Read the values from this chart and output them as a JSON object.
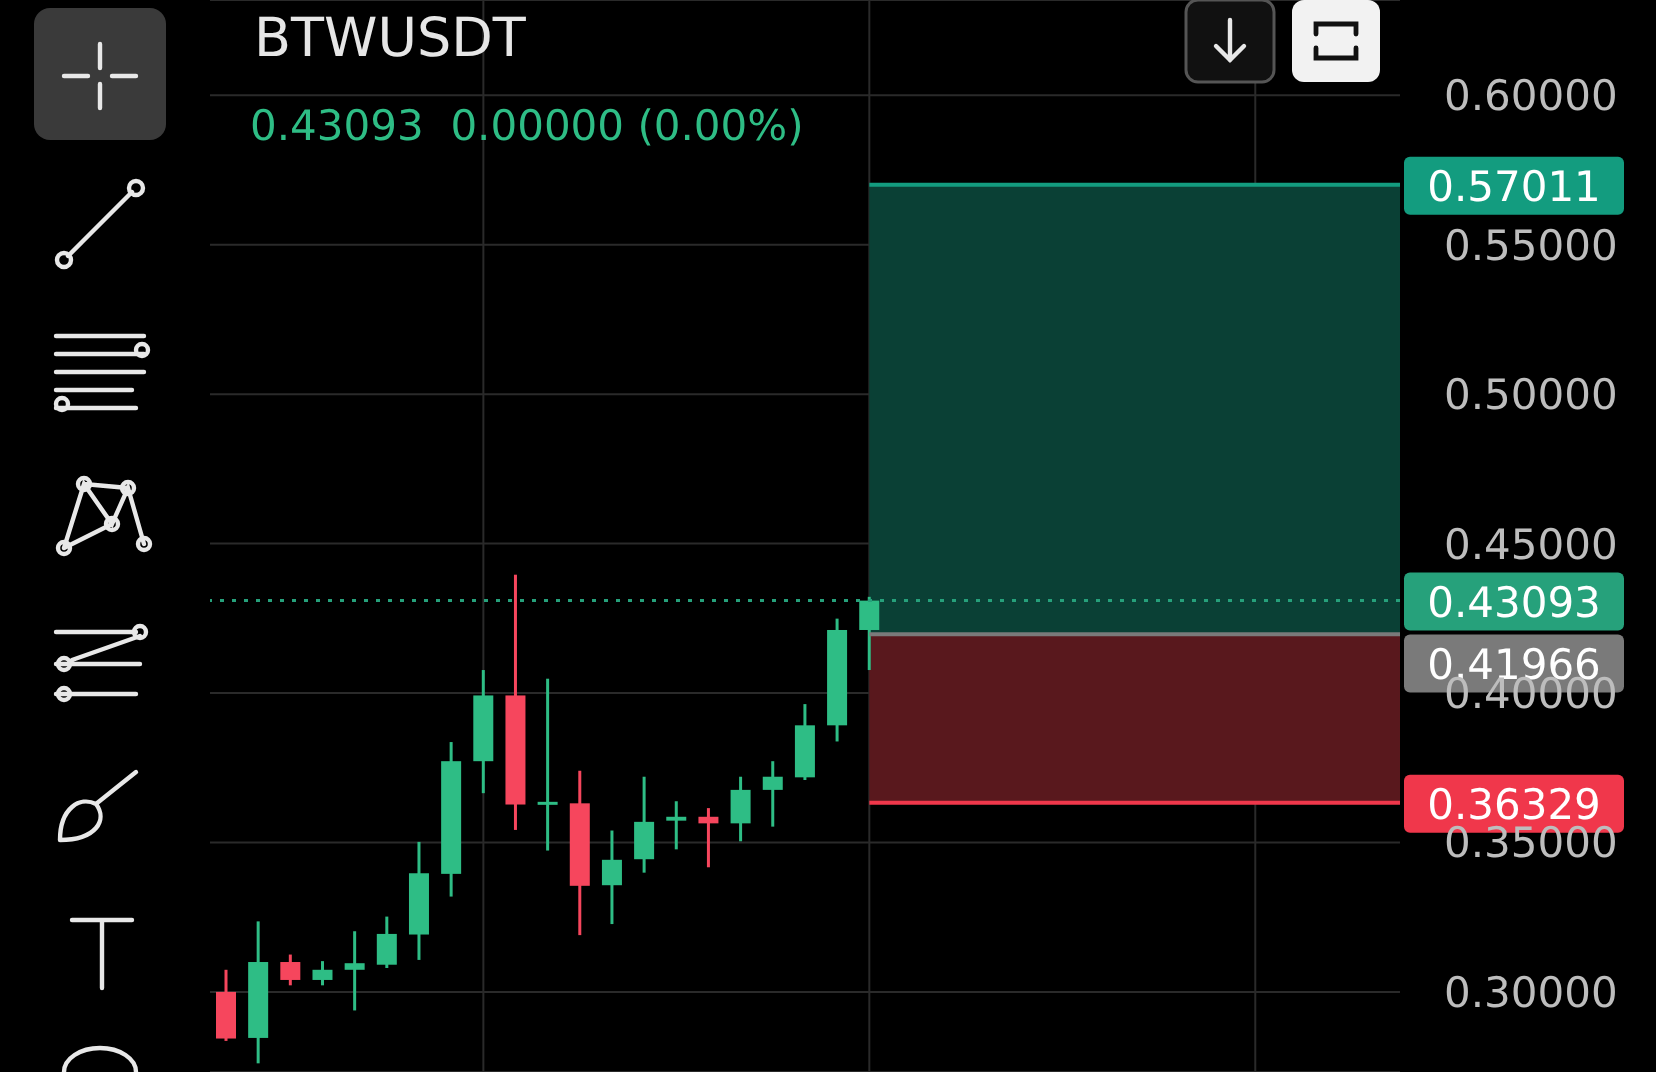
{
  "chart_data": {
    "type": "candlestick",
    "title": "BTWUSDT",
    "subtitle": "0.43093  0.00000 (0.00%)",
    "categories": [
      null,
      null,
      null,
      null,
      null,
      null,
      null,
      null,
      null,
      null,
      null,
      null,
      null,
      null,
      null,
      null,
      null,
      null,
      null,
      null,
      null,
      null,
      null,
      null,
      null,
      null,
      null,
      null,
      null,
      null,
      null,
      null,
      null,
      null,
      null,
      null,
      null
    ],
    "ohlc": [
      [
        0.3,
        0.3074,
        0.2836,
        0.2844
      ],
      [
        0.2846,
        0.3236,
        0.2761,
        0.31
      ],
      [
        0.31,
        0.3125,
        0.3022,
        0.304
      ],
      [
        0.304,
        0.3103,
        0.3022,
        0.3074
      ],
      [
        0.3074,
        0.3203,
        0.2938,
        0.3096
      ],
      [
        0.3091,
        0.3252,
        0.308,
        0.3194
      ],
      [
        0.3192,
        0.3502,
        0.3107,
        0.3397
      ],
      [
        0.3395,
        0.3836,
        0.3319,
        0.3772
      ],
      [
        0.3772,
        0.4077,
        0.3665,
        0.3992
      ],
      [
        0.3992,
        0.4396,
        0.3542,
        0.3627
      ],
      [
        0.3631,
        0.4048,
        0.3473,
        0.3636
      ],
      [
        0.3631,
        0.374,
        0.319,
        0.3355
      ],
      [
        0.3357,
        0.354,
        0.3227,
        0.3442
      ],
      [
        0.3444,
        0.372,
        0.3399,
        0.3569
      ],
      [
        0.3573,
        0.3638,
        0.3477,
        0.3586
      ],
      [
        0.3586,
        0.3615,
        0.3417,
        0.3564
      ],
      [
        0.3564,
        0.372,
        0.3504,
        0.3676
      ],
      [
        0.3676,
        0.3772,
        0.3553,
        0.372
      ],
      [
        0.3718,
        0.3963,
        0.3709,
        0.3892
      ],
      [
        0.3892,
        0.4249,
        0.3838,
        0.4211
      ],
      [
        0.4211,
        0.4322,
        0.4077,
        0.43093
      ],
      null,
      null,
      null,
      null,
      null,
      null,
      null,
      null,
      null,
      null,
      null,
      null,
      null,
      null,
      null,
      null
    ],
    "colors": [
      "#f6465d",
      "#2ebd85",
      "#f6465d",
      "#2ebd85",
      "#2ebd85",
      "#2ebd85",
      "#2ebd85",
      "#2ebd85",
      "#2ebd85",
      "#f6465d",
      "#2ebd85",
      "#f6465d",
      "#2ebd85",
      "#2ebd85",
      "#2ebd85",
      "#f6465d",
      "#2ebd85",
      "#2ebd85",
      "#2ebd85",
      "#2ebd85",
      "#2ebd85",
      null,
      null,
      null,
      null,
      null,
      null,
      null,
      null,
      null,
      null,
      null,
      null,
      null,
      null,
      null,
      null
    ],
    "ylim": [
      0.2732,
      0.6319
    ],
    "yticks": [
      {
        "value": 0.3,
        "label": "0.30000"
      },
      {
        "value": 0.35,
        "label": "0.35000"
      },
      {
        "value": 0.4,
        "label": "0.40000"
      },
      {
        "value": 0.45,
        "label": "0.45000"
      },
      {
        "value": 0.5,
        "label": "0.50000"
      },
      {
        "value": 0.55,
        "label": "0.55000"
      },
      {
        "value": 0.6,
        "label": "0.60000"
      }
    ],
    "tick_labels": "y",
    "grid": true,
    "bands": [
      {
        "axis": "y",
        "from": 0.41966,
        "to": 0.57011,
        "color": "#0a4035"
      },
      {
        "axis": "y",
        "from": 0.36329,
        "to": 0.41966,
        "color": "#59181d"
      }
    ],
    "ref_lines": [
      {
        "axis": "y",
        "value": 0.43093,
        "label": "0.43093",
        "color": "#26a17b",
        "line_style": "dotted"
      },
      {
        "axis": "y",
        "value": 0.57011,
        "label": "0.57011",
        "color": "#139c7f"
      },
      {
        "axis": "y",
        "value": 0.41966,
        "label": "0.41966",
        "color": "#7a7a7a"
      },
      {
        "axis": "y",
        "value": 0.36329,
        "label": "0.36329",
        "color": "#f0374b"
      }
    ]
  }
}
